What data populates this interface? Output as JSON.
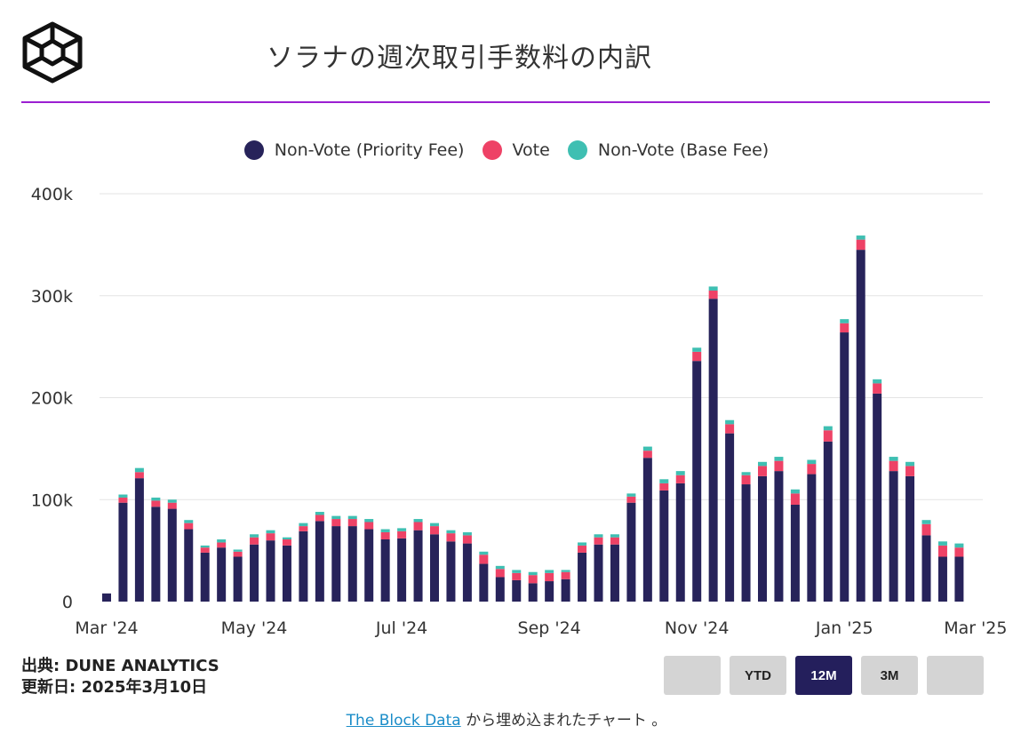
{
  "header": {
    "title": "ソラナの週次取引手数料の内訳"
  },
  "legend": [
    {
      "label": "Non-Vote (Priority Fee)",
      "color": "#27235a"
    },
    {
      "label": "Vote",
      "color": "#ee4266"
    },
    {
      "label": "Non-Vote (Base Fee)",
      "color": "#3fbfb2"
    }
  ],
  "footer": {
    "source": "出典: DUNE ANALYTICS",
    "updated": "更新日: 2025年3月10日",
    "embed_link": "The Block Data",
    "embed_suffix": " から埋め込まれたチャート 。"
  },
  "range_buttons": {
    "b1": "",
    "ytd": "YTD",
    "m12": "12M",
    "m3": "3M",
    "b5": ""
  },
  "chart_data": {
    "type": "bar",
    "stacked": true,
    "title": "ソラナの週次取引手数料の内訳",
    "xlabel": "",
    "ylabel": "",
    "ylim": [
      0,
      400000
    ],
    "y_ticks": [
      0,
      100000,
      200000,
      300000,
      400000
    ],
    "y_tick_labels": [
      "0",
      "100k",
      "200k",
      "300k",
      "400k"
    ],
    "x_tick_labels": [
      {
        "label": "Mar '24",
        "index": 0
      },
      {
        "label": "May '24",
        "index": 9
      },
      {
        "label": "Jul '24",
        "index": 18
      },
      {
        "label": "Sep '24",
        "index": 27
      },
      {
        "label": "Nov '24",
        "index": 36
      },
      {
        "label": "Jan '25",
        "index": 45
      },
      {
        "label": "Mar '25",
        "index": 53
      }
    ],
    "series": [
      {
        "name": "Non-Vote (Priority Fee)",
        "color": "#27235a",
        "values": [
          8000,
          97000,
          121000,
          93000,
          91000,
          71000,
          48000,
          53000,
          44000,
          56000,
          60000,
          55000,
          69000,
          79000,
          74000,
          74000,
          71000,
          61000,
          62000,
          70000,
          66000,
          59000,
          57000,
          37000,
          24000,
          21000,
          18000,
          20000,
          22000,
          48000,
          56000,
          56000,
          97000,
          141000,
          109000,
          116000,
          236000,
          297000,
          165000,
          115000,
          123000,
          128000,
          95000,
          125000,
          157000,
          264000,
          345000,
          204000,
          128000,
          123000,
          65000,
          44000,
          44000
        ]
      },
      {
        "name": "Vote",
        "color": "#ee4266",
        "values": [
          0,
          5000,
          6000,
          6000,
          6000,
          6000,
          5000,
          5000,
          5000,
          7000,
          7000,
          6000,
          5000,
          6000,
          7000,
          7000,
          7000,
          7000,
          7000,
          8000,
          8000,
          8000,
          8000,
          9000,
          8000,
          7000,
          8000,
          8000,
          7000,
          7000,
          7000,
          7000,
          6000,
          7000,
          7000,
          8000,
          9000,
          8000,
          9000,
          9000,
          10000,
          10000,
          11000,
          10000,
          11000,
          9000,
          10000,
          10000,
          10000,
          10000,
          11000,
          11000,
          9000
        ]
      },
      {
        "name": "Non-Vote (Base Fee)",
        "color": "#3fbfb2",
        "values": [
          0,
          3000,
          4000,
          3000,
          3000,
          3000,
          2000,
          3000,
          2000,
          3000,
          3000,
          2000,
          3000,
          3000,
          3000,
          3000,
          3000,
          3000,
          3000,
          3000,
          3000,
          3000,
          3000,
          3000,
          3000,
          3000,
          3000,
          3000,
          2000,
          3000,
          3000,
          3000,
          3000,
          4000,
          4000,
          4000,
          4000,
          4000,
          4000,
          3000,
          4000,
          4000,
          4000,
          4000,
          4000,
          4000,
          4000,
          4000,
          4000,
          4000,
          4000,
          4000,
          4000
        ]
      }
    ]
  }
}
